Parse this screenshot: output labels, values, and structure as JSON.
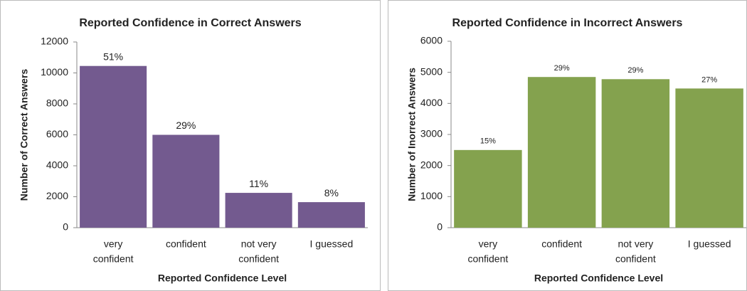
{
  "chart_data": [
    {
      "type": "bar",
      "title": "Reported Confidence in Correct Answers",
      "xlabel": "Reported Confidence Level",
      "ylabel": "Number of Correct Answers",
      "categories": [
        [
          "very",
          "confident"
        ],
        [
          "confident"
        ],
        [
          "not very",
          "confident"
        ],
        [
          "I guessed"
        ]
      ],
      "values": [
        10450,
        6000,
        2250,
        1650
      ],
      "percent_labels": [
        "51%",
        "29%",
        "11%",
        "8%"
      ],
      "color": "#735a8f",
      "ylim": [
        0,
        12000
      ],
      "yticks": [
        0,
        2000,
        4000,
        6000,
        8000,
        10000,
        12000
      ]
    },
    {
      "type": "bar",
      "title": "Reported Confidence in Incorrect Answers",
      "xlabel": "Reported Confidence Level",
      "ylabel": "Number of Inorrect Answers",
      "categories": [
        [
          "very",
          "confident"
        ],
        [
          "confident"
        ],
        [
          "not very",
          "confident"
        ],
        [
          "I guessed"
        ]
      ],
      "values": [
        2500,
        4850,
        4780,
        4480
      ],
      "percent_labels": [
        "15%",
        "29%",
        "29%",
        "27%"
      ],
      "color": "#84a24e",
      "ylim": [
        0,
        6000
      ],
      "yticks": [
        0,
        1000,
        2000,
        3000,
        4000,
        5000,
        6000
      ]
    }
  ]
}
